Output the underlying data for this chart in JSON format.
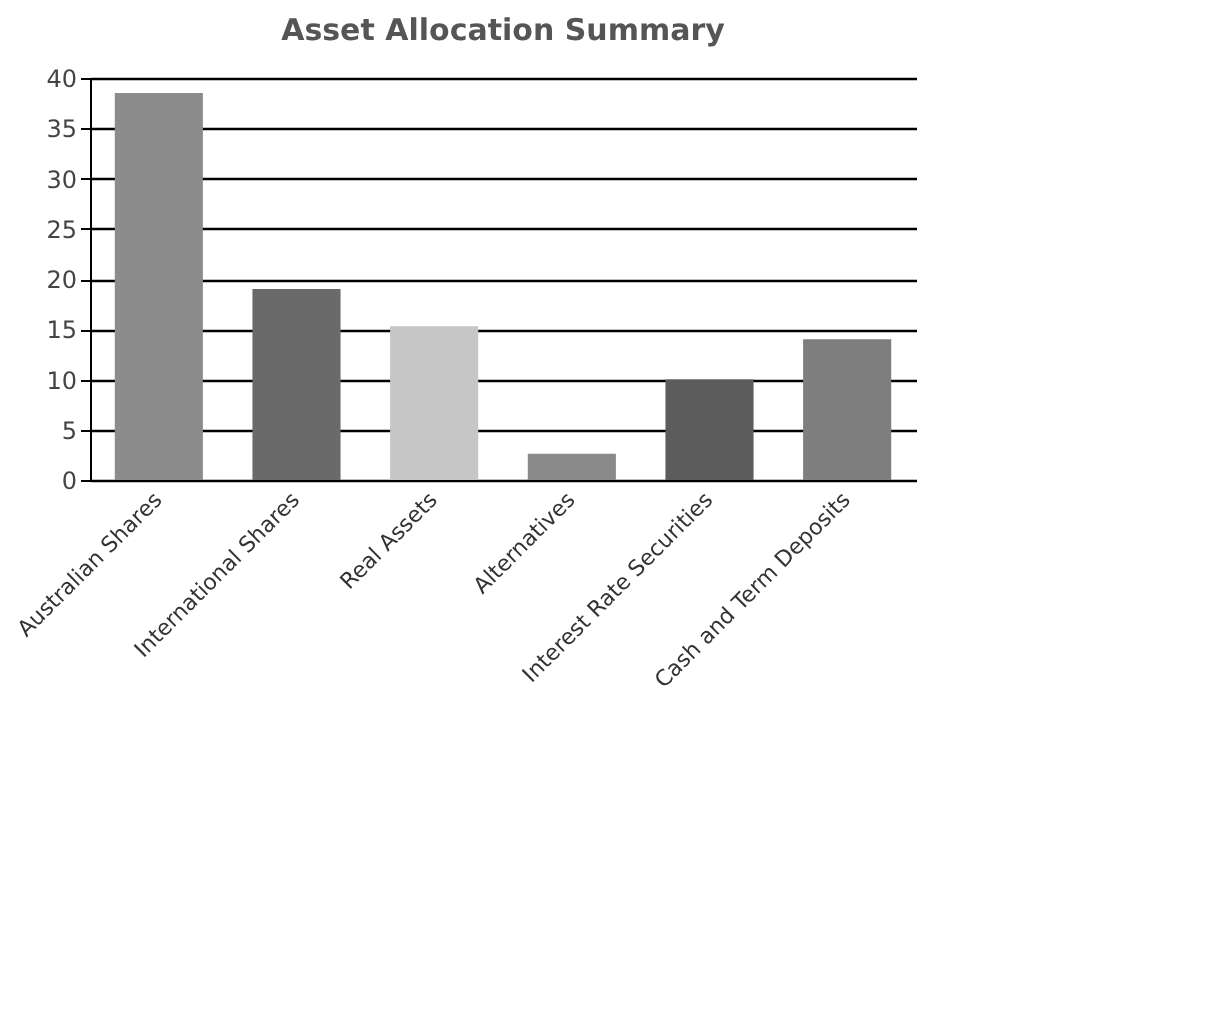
{
  "chart_data": {
    "type": "bar",
    "title": "Asset Allocation Summary",
    "categories": [
      "Australian Shares",
      "International Shares",
      "Real Assets",
      "Alternatives",
      "Interest Rate Securities",
      "Cash and Term Deposits"
    ],
    "values": [
      38.5,
      19,
      15.3,
      2.6,
      10,
      14
    ],
    "colors": [
      "#8c8c8c",
      "#6a6a6a",
      "#c6c6c6",
      "#8a8a8a",
      "#5c5c5c",
      "#7e7e7e"
    ],
    "ylim": [
      0,
      40
    ],
    "yticks": [
      0,
      5,
      10,
      15,
      20,
      25,
      30,
      35,
      40
    ],
    "grid": "y"
  }
}
